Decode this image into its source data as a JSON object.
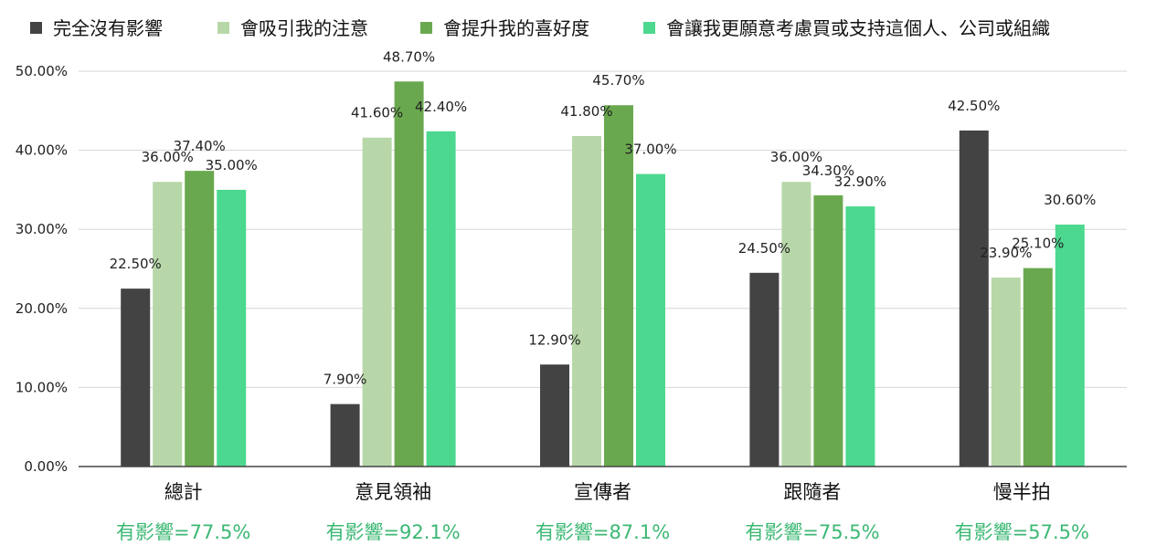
{
  "chart_data": {
    "type": "bar",
    "categories": [
      "總計",
      "意見領袖",
      "宣傳者",
      "跟隨者",
      "慢半拍"
    ],
    "series": [
      {
        "name": "完全沒有影響",
        "color": "#434343",
        "values": [
          22.5,
          7.9,
          12.9,
          24.5,
          42.5
        ],
        "labels": [
          "22.50%",
          "7.90%",
          "12.90%",
          "24.50%",
          "42.50%"
        ]
      },
      {
        "name": "會吸引我的注意",
        "color": "#b7d7a8",
        "values": [
          36.0,
          41.6,
          41.8,
          36.0,
          23.9
        ],
        "labels": [
          "36.00%",
          "41.60%",
          "41.80%",
          "36.00%",
          "23.90%"
        ]
      },
      {
        "name": "會提升我的喜好度",
        "color": "#6aa84f",
        "values": [
          37.4,
          48.7,
          45.7,
          34.3,
          25.1
        ],
        "labels": [
          "37.40%",
          "48.70%",
          "45.70%",
          "34.30%",
          "25.10%"
        ]
      },
      {
        "name": "會讓我更願意考慮買或支持這個人、公司或組織",
        "color": "#4cd88f",
        "values": [
          35.0,
          42.4,
          37.0,
          32.9,
          30.6
        ],
        "labels": [
          "35.00%",
          "42.40%",
          "37.00%",
          "32.90%",
          "30.60%"
        ]
      }
    ],
    "ylim": [
      0,
      50
    ],
    "y_ticks": [
      "0.00%",
      "10.00%",
      "20.00%",
      "30.00%",
      "40.00%",
      "50.00%"
    ],
    "grid": true,
    "legend_position": "top",
    "title": "",
    "xlabel": "",
    "ylabel": ""
  },
  "impact_labels": [
    "有影響=77.5%",
    "有影響=92.1%",
    "有影響=87.1%",
    "有影響=75.5%",
    "有影響=57.5%"
  ],
  "impact_color": "#3cb874"
}
